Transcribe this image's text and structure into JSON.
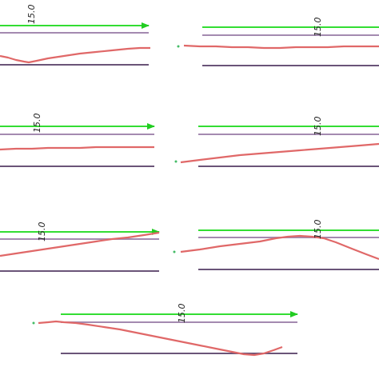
{
  "colors": {
    "background": "#ffffff",
    "arrow": "#33dd33",
    "arrow_head": "#22cc22",
    "upper_line": "#a48ab0",
    "lower_line": "#6a5478",
    "profile": "#e06868",
    "dot": "#44bb66"
  },
  "panels": [
    {
      "label": "15.0",
      "profile": "dip",
      "dot": false
    },
    {
      "label": "15.0",
      "profile": "flat",
      "dot": true
    },
    {
      "label": "15.0",
      "profile": "flat",
      "dot": false
    },
    {
      "label": "15.0",
      "profile": "rise",
      "dot": true
    },
    {
      "label": "15.0",
      "profile": "rise",
      "dot": false
    },
    {
      "label": "15.0",
      "profile": "hump",
      "dot": true
    },
    {
      "label": "15.0",
      "profile": "fall",
      "dot": true
    }
  ]
}
